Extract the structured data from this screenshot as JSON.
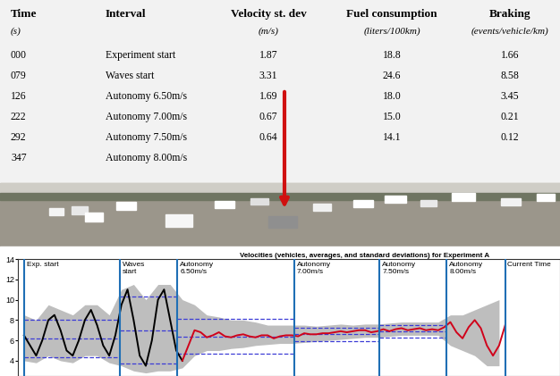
{
  "table": {
    "columns": [
      {
        "header": "Time",
        "unit": "(s)"
      },
      {
        "header": "Interval"
      },
      {
        "header": "Velocity st. dev",
        "unit": "(m/s)"
      },
      {
        "header": "Fuel consumption",
        "unit": "(liters/100km)"
      },
      {
        "header": "Braking",
        "unit": "(events/vehicle/km)"
      }
    ],
    "rows": [
      [
        "000",
        "Experiment start",
        "1.87",
        "18.8",
        "1.66"
      ],
      [
        "079",
        "Waves start",
        "3.31",
        "24.6",
        "8.58"
      ],
      [
        "126",
        "Autonomy 6.50m/s",
        "1.69",
        "18.0",
        "3.45"
      ],
      [
        "222",
        "Autonomy 7.00m/s",
        "0.67",
        "15.0",
        "0.21"
      ],
      [
        "292",
        "Autonomy 7.50m/s",
        "0.64",
        "14.1",
        "0.12"
      ],
      [
        "347",
        "Autonomy 8.00m/s",
        null,
        null,
        null
      ]
    ]
  },
  "chart_data": {
    "type": "line",
    "title": "Velocities (vehicles, averages, and standard deviations) for Experiment A",
    "xlim": [
      -5,
      440
    ],
    "ylim": [
      2.5,
      14
    ],
    "yticks": [
      4,
      6,
      8,
      10,
      12,
      14
    ],
    "tick_labels": "y",
    "grid": false,
    "markers": [
      {
        "x": 0,
        "label": "Exp. start"
      },
      {
        "x": 79,
        "label": "Waves\nstart"
      },
      {
        "x": 126,
        "label": "Autonomy\n6.50m/s"
      },
      {
        "x": 222,
        "label": "Autonomy\n7.00m/s"
      },
      {
        "x": 292,
        "label": "Autonomy\n7.50m/s"
      },
      {
        "x": 347,
        "label": "Autonomy\n8.00m/s"
      },
      {
        "x": 395,
        "label": "Current Time"
      }
    ],
    "marker_color": "#1f6fb5",
    "spread": {
      "color": "#a8a8a8",
      "x": [
        0,
        10,
        20,
        30,
        40,
        50,
        60,
        70,
        80,
        90,
        100,
        110,
        120,
        130,
        140,
        150,
        160,
        170,
        180,
        190,
        200,
        210,
        220,
        230,
        240,
        250,
        260,
        270,
        280,
        290,
        300,
        310,
        320,
        330,
        340,
        350,
        360,
        370,
        380,
        390
      ],
      "upper": [
        8.5,
        8,
        9.5,
        9,
        8.5,
        9.5,
        9.5,
        8.5,
        11,
        11.5,
        10,
        11.5,
        11.5,
        10,
        9.5,
        8.5,
        8.3,
        8,
        8,
        7.8,
        7.5,
        7.5,
        7.5,
        7.5,
        7.4,
        7.5,
        7.6,
        7.5,
        7.6,
        7.6,
        7.7,
        7.8,
        7.8,
        7.8,
        7.8,
        8.5,
        8.5,
        9,
        9.5,
        10
      ],
      "lower": [
        4,
        3.8,
        4.5,
        4,
        3.8,
        4.5,
        4.5,
        3.8,
        3.5,
        3,
        2.8,
        3,
        3,
        3.3,
        4.5,
        5,
        5,
        5.2,
        5.3,
        5.5,
        5.6,
        5.7,
        5.7,
        5.8,
        5.9,
        6,
        6.1,
        6.2,
        6.3,
        6.3,
        6.4,
        6.5,
        6.5,
        6.5,
        6.5,
        5.5,
        5,
        4.5,
        3.5,
        3.5
      ]
    },
    "bands": {
      "color": "#3b3bd6",
      "line_style": "dashed",
      "items": [
        {
          "x": [
            0,
            79
          ],
          "mean": 6.2,
          "std": 1.87
        },
        {
          "x": [
            79,
            126
          ],
          "mean": 7.0,
          "std": 3.31
        },
        {
          "x": [
            126,
            222
          ],
          "mean": 6.4,
          "std": 1.69
        },
        {
          "x": [
            222,
            292
          ],
          "mean": 6.6,
          "std": 0.67
        },
        {
          "x": [
            292,
            347
          ],
          "mean": 6.9,
          "std": 0.64
        }
      ]
    },
    "series": [
      {
        "color": "#000000",
        "x": [
          0,
          5,
          10,
          15,
          20,
          25,
          30,
          35,
          40,
          45,
          50,
          55,
          60,
          65,
          70,
          75,
          80,
          85,
          90,
          95,
          100,
          105,
          110,
          115,
          120,
          125,
          130
        ],
        "values": [
          6.5,
          5.5,
          4.5,
          6,
          8,
          8.5,
          7,
          5,
          4.5,
          6,
          8,
          9,
          7.5,
          5.5,
          4.5,
          6.5,
          9.5,
          11,
          8,
          4.5,
          3.5,
          6,
          10,
          11,
          8,
          5,
          4
        ]
      },
      {
        "color": "#d0021b",
        "x": [
          130,
          135,
          140,
          145,
          150,
          155,
          160,
          165,
          170,
          175,
          180,
          185,
          190,
          195,
          200,
          205,
          210,
          215,
          220,
          225,
          230,
          235,
          240,
          245,
          250,
          255,
          260,
          265,
          270,
          275,
          280,
          285,
          290,
          295,
          300,
          305,
          310,
          315,
          320,
          325,
          330,
          335,
          340,
          345,
          350,
          355,
          360,
          365,
          370,
          375,
          380,
          385,
          390,
          395
        ],
        "values": [
          4,
          5.5,
          7,
          6.8,
          6.3,
          6.5,
          6.8,
          6.4,
          6.3,
          6.5,
          6.6,
          6.4,
          6.3,
          6.5,
          6.5,
          6.2,
          6.4,
          6.5,
          6.5,
          6.4,
          6.7,
          6.6,
          6.6,
          6.7,
          6.7,
          6.8,
          6.9,
          6.8,
          6.9,
          7,
          7,
          6.8,
          6.9,
          7.1,
          6.9,
          7.1,
          7.2,
          7,
          7.1,
          7.2,
          7,
          7.1,
          7,
          7.3,
          7.8,
          6.8,
          6.2,
          7.3,
          8,
          7.2,
          5.5,
          4.5,
          5.5,
          7.5
        ]
      }
    ]
  }
}
